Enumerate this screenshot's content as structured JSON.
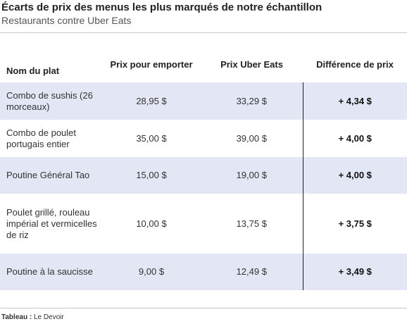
{
  "title": "Écarts de prix des menus les plus marqués de notre échantillon",
  "subtitle": "Restaurants contre Uber Eats",
  "table": {
    "headers": [
      "Nom du plat",
      "Prix pour emporter",
      "Prix Uber Eats",
      "Différence de prix"
    ],
    "rows": [
      [
        "Combo de sushis (26 morceaux)",
        "28,95 $",
        "33,29 $",
        "+ 4,34 $"
      ],
      [
        "Combo de poulet portugais entier",
        "35,00 $",
        "39,00 $",
        "+ 4,00 $"
      ],
      [
        "Poutine Général Tao",
        "15,00 $",
        "19,00 $",
        "+ 4,00 $"
      ],
      [
        "Poulet grillé, rouleau impérial et vermicelles de riz",
        "10,00 $",
        "13,75 $",
        "+ 3,75 $"
      ],
      [
        "Poutine à la saucisse",
        "9,00 $",
        "12,49 $",
        "+ 3,49 $"
      ]
    ]
  },
  "source": {
    "label": "Tableau :",
    "value": "Le Devoir"
  }
}
